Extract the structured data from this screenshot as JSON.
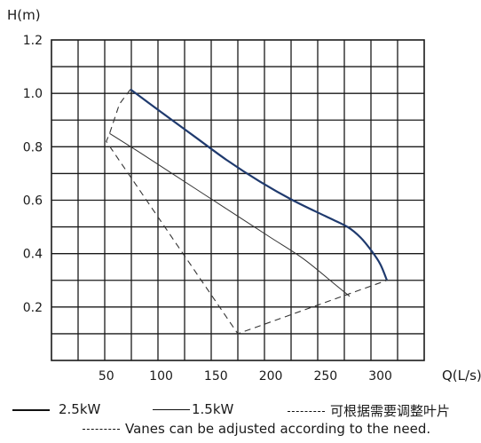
{
  "chart_data": {
    "type": "line",
    "ylabel": "H(m)",
    "xlabel": "Q(L/s)",
    "xlim": [
      0,
      340
    ],
    "ylim": [
      0,
      1.2
    ],
    "x_ticks": [
      50,
      100,
      150,
      200,
      250,
      300
    ],
    "y_ticks": [
      0.2,
      0.4,
      0.6,
      0.8,
      1.0,
      1.2
    ],
    "y_tick_labels": [
      "0.2",
      "0.4",
      "0.6",
      "0.8",
      "1.0",
      "1.2"
    ],
    "grid": true,
    "series": [
      {
        "name": "2.5kW",
        "style": "solid-thick",
        "color": "#1f3a6e",
        "x": [
          72,
          100,
          130,
          160,
          190,
          220,
          250,
          270,
          282,
          292,
          300,
          306
        ],
        "y": [
          1.015,
          0.93,
          0.84,
          0.75,
          0.67,
          0.6,
          0.54,
          0.5,
          0.46,
          0.41,
          0.36,
          0.3
        ]
      },
      {
        "name": "1.5kW",
        "style": "solid-thin",
        "color": "#333333",
        "x": [
          53,
          80,
          110,
          140,
          170,
          200,
          230,
          260,
          272
        ],
        "y": [
          0.85,
          0.78,
          0.7,
          0.62,
          0.54,
          0.46,
          0.38,
          0.28,
          0.24
        ]
      },
      {
        "name": "可根据需要调整叶片",
        "style": "dashed",
        "color": "#333333",
        "x": [
          72,
          62,
          53,
          50,
          170,
          306
        ],
        "y": [
          1.015,
          0.96,
          0.85,
          0.82,
          0.1,
          0.3
        ]
      }
    ]
  },
  "legend": {
    "item1": "2.5kW",
    "item2": "1.5kW",
    "item3": "可根据需要调整叶片",
    "item4": "Vanes can be adjusted according to the need."
  }
}
